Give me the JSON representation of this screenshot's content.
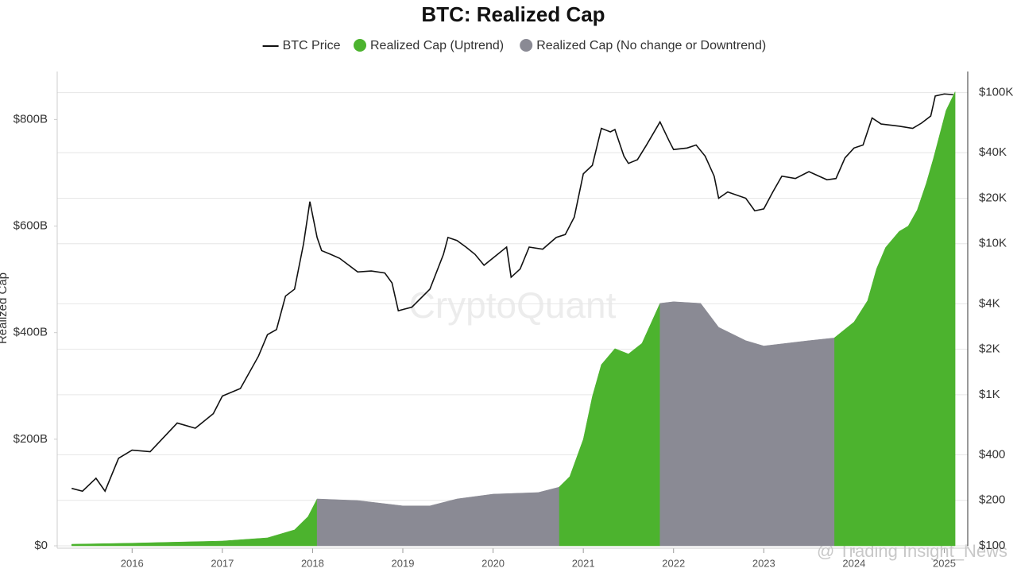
{
  "chart_data": {
    "type": "area",
    "title": "BTC: Realized Cap",
    "y_label": "Realized Cap",
    "annotations": [
      "CryptoQuant",
      "@ Trading Insight_News"
    ],
    "xlim": [
      2015.17,
      2025.26
    ],
    "xticks": [
      2016,
      2017,
      2018,
      2019,
      2020,
      2021,
      2022,
      2023,
      2024,
      2025
    ],
    "ylim": [
      0,
      890
    ],
    "yticks": [
      {
        "value": 0,
        "label": "$0"
      },
      {
        "value": 200,
        "label": "$200B"
      },
      {
        "value": 400,
        "label": "$400B"
      },
      {
        "value": 600,
        "label": "$600B"
      },
      {
        "value": 800,
        "label": "$800B"
      }
    ],
    "y2lim": [
      100,
      138000
    ],
    "y2_log": true,
    "y2ticks": [
      {
        "value": 100,
        "label": "$100"
      },
      {
        "value": 200,
        "label": "$200"
      },
      {
        "value": 400,
        "label": "$400"
      },
      {
        "value": 1000,
        "label": "$1K"
      },
      {
        "value": 2000,
        "label": "$2K"
      },
      {
        "value": 4000,
        "label": "$4K"
      },
      {
        "value": 10000,
        "label": "$10K"
      },
      {
        "value": 20000,
        "label": "$20K"
      },
      {
        "value": 40000,
        "label": "$40K"
      },
      {
        "value": 100000,
        "label": "$100K"
      }
    ],
    "grid": true,
    "series": [
      {
        "name": "BTC Price",
        "type": "line",
        "axis": "y2",
        "color": "#111111",
        "x": [
          2015.33,
          2015.45,
          2015.6,
          2015.7,
          2015.85,
          2016.0,
          2016.2,
          2016.5,
          2016.7,
          2016.9,
          2017.0,
          2017.2,
          2017.4,
          2017.5,
          2017.6,
          2017.7,
          2017.8,
          2017.9,
          2017.97,
          2018.05,
          2018.1,
          2018.2,
          2018.3,
          2018.5,
          2018.65,
          2018.8,
          2018.88,
          2018.95,
          2019.1,
          2019.3,
          2019.45,
          2019.5,
          2019.6,
          2019.7,
          2019.8,
          2019.9,
          2020.05,
          2020.15,
          2020.2,
          2020.3,
          2020.4,
          2020.55,
          2020.7,
          2020.8,
          2020.9,
          2021.0,
          2021.1,
          2021.2,
          2021.3,
          2021.35,
          2021.45,
          2021.5,
          2021.6,
          2021.7,
          2021.85,
          2021.95,
          2022.0,
          2022.15,
          2022.25,
          2022.35,
          2022.45,
          2022.5,
          2022.6,
          2022.8,
          2022.9,
          2023.0,
          2023.1,
          2023.2,
          2023.35,
          2023.5,
          2023.7,
          2023.8,
          2023.9,
          2024.0,
          2024.1,
          2024.2,
          2024.3,
          2024.5,
          2024.65,
          2024.75,
          2024.85,
          2024.9,
          2025.0,
          2025.1
        ],
        "values": [
          240,
          230,
          280,
          230,
          380,
          430,
          420,
          650,
          600,
          750,
          980,
          1100,
          1800,
          2500,
          2700,
          4500,
          5000,
          10000,
          19000,
          11000,
          9000,
          8500,
          8000,
          6500,
          6600,
          6400,
          5500,
          3600,
          3800,
          5000,
          8500,
          11000,
          10500,
          9500,
          8500,
          7200,
          8500,
          9500,
          6000,
          6800,
          9500,
          9200,
          11000,
          11500,
          15000,
          29000,
          33000,
          58000,
          55000,
          57000,
          38000,
          34000,
          36000,
          45000,
          64000,
          48000,
          42000,
          43000,
          45000,
          38000,
          28000,
          20000,
          22000,
          20000,
          16500,
          17000,
          22000,
          28000,
          27000,
          30000,
          26500,
          27000,
          37000,
          43000,
          45000,
          68000,
          62000,
          60000,
          58000,
          63000,
          70000,
          95000,
          98000,
          97000
        ]
      },
      {
        "name": "Realized Cap (Uptrend)",
        "type": "area",
        "axis": "y",
        "color": "#4cb32e",
        "x": [
          2015.33,
          2016.0,
          2016.5,
          2017.0,
          2017.5,
          2017.8,
          2017.95,
          2018.05,
          2018.5,
          2019.0,
          2019.3,
          2019.6,
          2020.0,
          2020.5,
          2020.73,
          2020.85,
          2021.0,
          2021.1,
          2021.2,
          2021.35,
          2021.5,
          2021.65,
          2021.85,
          2022.0,
          2022.3,
          2022.5,
          2022.8,
          2023.0,
          2023.5,
          2023.78,
          2024.0,
          2024.15,
          2024.25,
          2024.35,
          2024.5,
          2024.6,
          2024.7,
          2024.8,
          2024.88,
          2025.02,
          2025.12
        ],
        "values": [
          3,
          5,
          7,
          9,
          15,
          30,
          55,
          88,
          null,
          null,
          null,
          null,
          null,
          null,
          110,
          130,
          200,
          280,
          340,
          370,
          360,
          380,
          455,
          null,
          null,
          null,
          null,
          null,
          null,
          390,
          420,
          460,
          520,
          560,
          590,
          600,
          630,
          680,
          727,
          817,
          852
        ]
      },
      {
        "name": "Realized Cap (No change or Downtrend)",
        "type": "area",
        "axis": "y",
        "color": "#8a8a94",
        "x": [
          2015.33,
          2016.0,
          2016.5,
          2017.0,
          2017.5,
          2017.8,
          2017.95,
          2018.05,
          2018.5,
          2019.0,
          2019.3,
          2019.6,
          2020.0,
          2020.5,
          2020.73,
          2020.85,
          2021.0,
          2021.1,
          2021.2,
          2021.35,
          2021.5,
          2021.65,
          2021.85,
          2022.0,
          2022.3,
          2022.5,
          2022.8,
          2023.0,
          2023.5,
          2023.78,
          2024.0,
          2024.15,
          2024.25,
          2024.35,
          2024.5,
          2024.6,
          2024.7,
          2024.8,
          2024.88,
          2025.02,
          2025.12
        ],
        "values": [
          null,
          null,
          null,
          null,
          null,
          null,
          null,
          88,
          85,
          75,
          75,
          88,
          97,
          100,
          110,
          null,
          null,
          null,
          null,
          null,
          null,
          null,
          455,
          458,
          455,
          410,
          385,
          375,
          385,
          390,
          null,
          null,
          null,
          null,
          null,
          null,
          null,
          null,
          null,
          null,
          null
        ]
      }
    ]
  }
}
